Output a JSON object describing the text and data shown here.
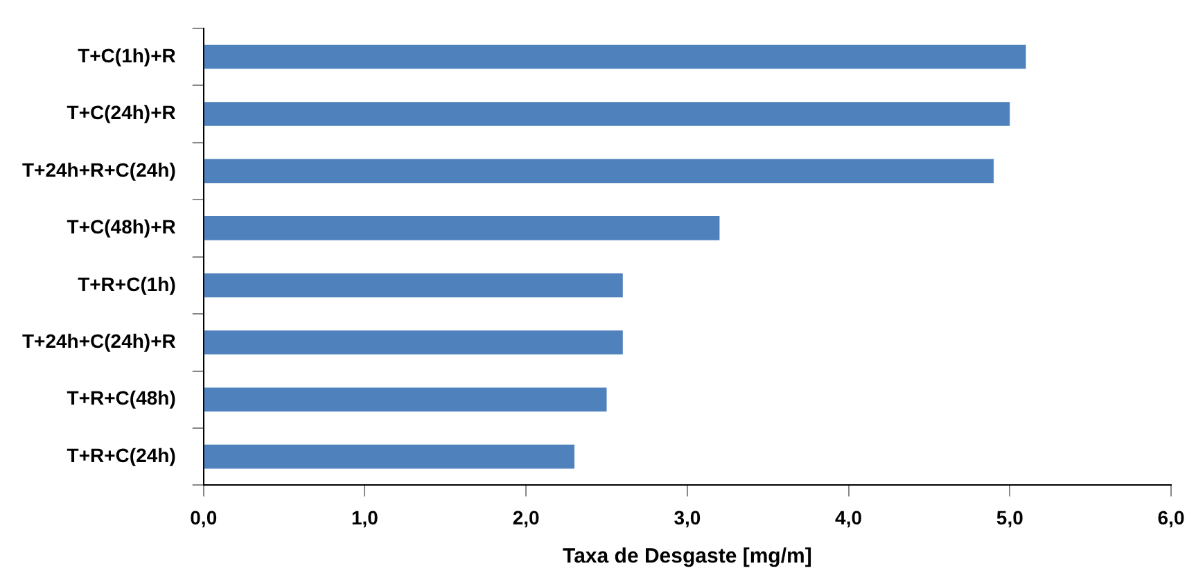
{
  "chart_data": {
    "type": "bar",
    "orientation": "horizontal",
    "xlabel": "Taxa de Desgaste [mg/m]",
    "categories": [
      "T+C(1h)+R",
      "T+C(24h)+R",
      "T+24h+R+C(24h)",
      "T+C(48h)+R",
      "T+R+C(1h)",
      "T+24h+C(24h)+R",
      "T+R+C(48h)",
      "T+R+C(24h)"
    ],
    "values": [
      5.1,
      5.0,
      4.9,
      3.2,
      2.6,
      2.6,
      2.5,
      2.3
    ],
    "color": "#4f81bd",
    "xlim": [
      0,
      6
    ],
    "xticks": [
      {
        "value": 0,
        "label": "0,0"
      },
      {
        "value": 1,
        "label": "1,0"
      },
      {
        "value": 2,
        "label": "2,0"
      },
      {
        "value": 3,
        "label": "3,0"
      },
      {
        "value": 4,
        "label": "4,0"
      },
      {
        "value": 5,
        "label": "5,0"
      },
      {
        "value": 6,
        "label": "6,0"
      }
    ],
    "grid": false,
    "legend": false
  }
}
